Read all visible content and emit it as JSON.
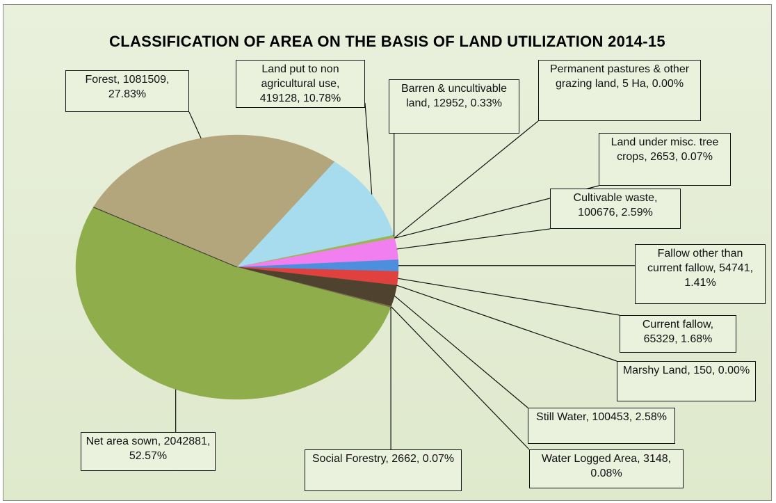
{
  "chart_data": {
    "type": "pie",
    "title": "CLASSIFICATION OF AREA ON THE BASIS OF LAND UTILIZATION 2014-15",
    "values": [
      1081509,
      419128,
      12952,
      5,
      2653,
      100676,
      54741,
      65329,
      150,
      100453,
      3148,
      2662,
      2042881
    ],
    "value_labels": [
      "Forest, 1081509, 27.83%",
      "Land put to non agricultural use, 419128, 10.78%",
      "Barren & uncultivable land, 12952, 0.33%",
      "Permanent pastures & other grazing land, 5 Ha, 0.00%",
      "Land under misc. tree crops, 2653, 0.07%",
      "Cultivable waste, 100676, 2.59%",
      "Fallow other than current fallow, 54741, 1.41%",
      "Current fallow, 65329, 1.68%",
      "Marshy Land, 150, 0.00%",
      "Still Water, 100453, 2.58%",
      "Water Logged Area, 3148, 0.08%",
      "Social Forestry, 2662, 0.07%",
      "Net area sown, 2042881, 52.57%"
    ],
    "colors": [
      "#b3a57c",
      "#a6dcee",
      "#9ab55a",
      "#6d8a3a",
      "#c8b070",
      "#f27ff0",
      "#4d8fdc",
      "#e0403e",
      "#7a6a4a",
      "#4f4330",
      "#8c7a56",
      "#6a6048",
      "#8fad4b"
    ]
  }
}
